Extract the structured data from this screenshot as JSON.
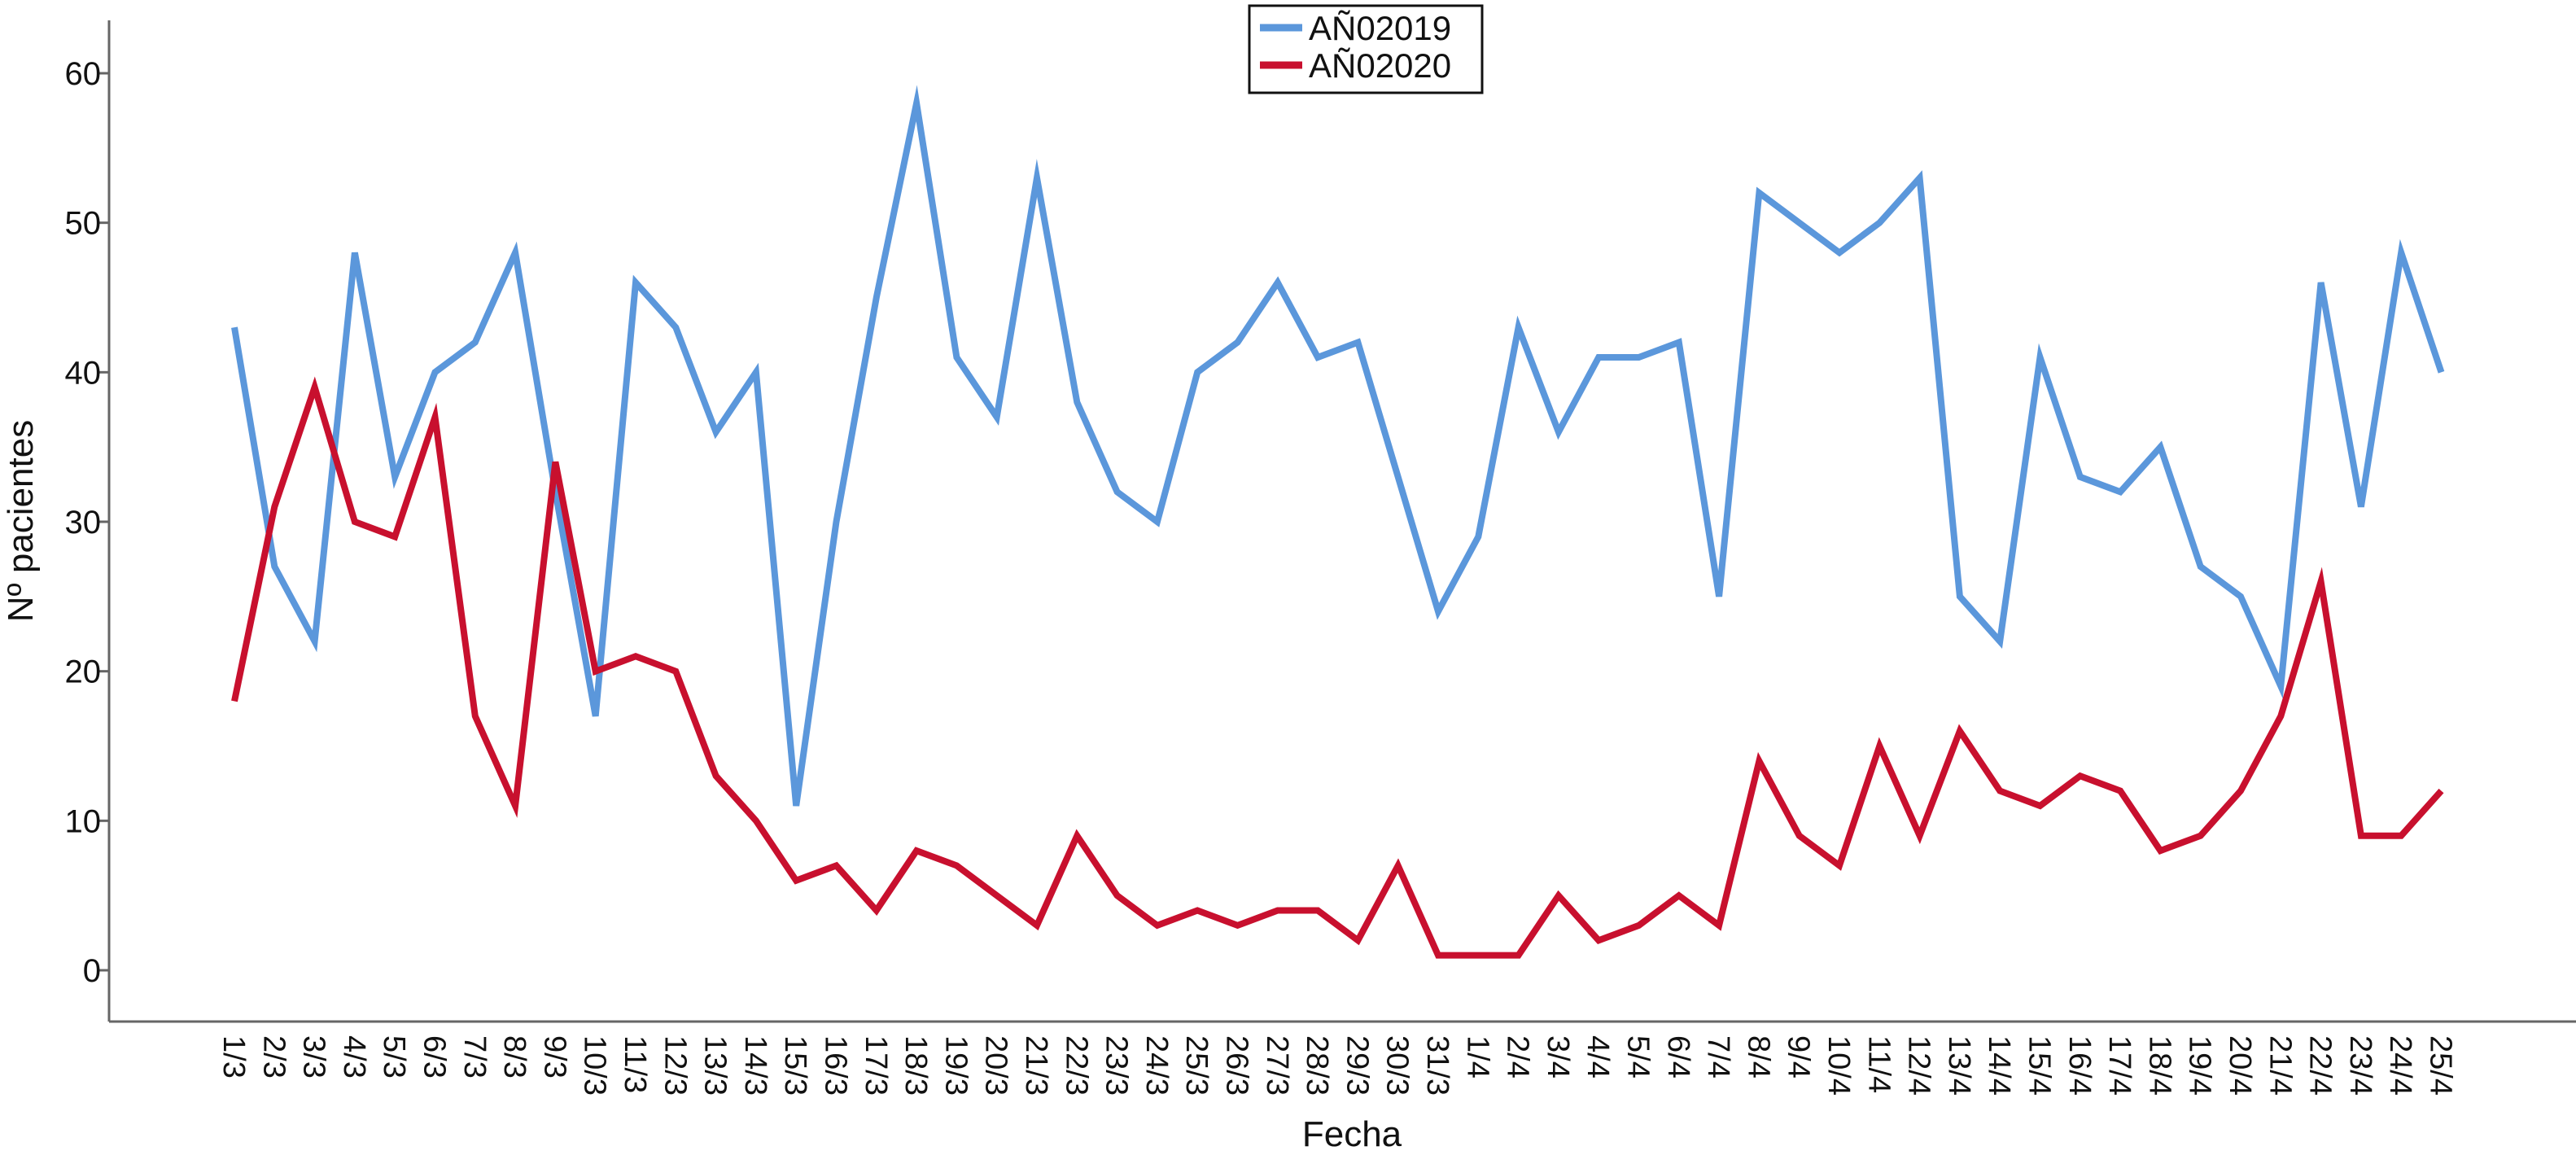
{
  "chart_data": {
    "type": "line",
    "xlabel": "Fecha",
    "ylabel": "Nº pacientes",
    "ylim": [
      0,
      60
    ],
    "yticks": [
      0,
      10,
      20,
      30,
      40,
      50,
      60
    ],
    "grid": false,
    "legend_position": "top-center",
    "categories": [
      "1/3",
      "2/3",
      "3/3",
      "4/3",
      "5/3",
      "6/3",
      "7/3",
      "8/3",
      "9/3",
      "10/3",
      "11/3",
      "12/3",
      "13/3",
      "14/3",
      "15/3",
      "16/3",
      "17/3",
      "18/3",
      "19/3",
      "20/3",
      "21/3",
      "22/3",
      "23/3",
      "24/3",
      "25/3",
      "26/3",
      "27/3",
      "28/3",
      "29/3",
      "30/3",
      "31/3",
      "1/4",
      "2/4",
      "3/4",
      "4/4",
      "5/4",
      "6/4",
      "7/4",
      "8/4",
      "9/4",
      "10/4",
      "11/4",
      "12/4",
      "13/4",
      "14/4",
      "15/4",
      "16/4",
      "17/4",
      "18/4",
      "19/4",
      "20/4",
      "21/4",
      "22/4",
      "23/4",
      "24/4",
      "25/4"
    ],
    "series": [
      {
        "name": "AÑ02019",
        "color": "#5B97DB",
        "values": [
          43,
          27,
          22,
          48,
          33,
          40,
          42,
          48,
          32,
          17,
          46,
          43,
          36,
          40,
          11,
          30,
          45,
          58,
          41,
          37,
          53,
          38,
          32,
          30,
          40,
          42,
          46,
          41,
          42,
          33,
          24,
          29,
          43,
          36,
          41,
          41,
          42,
          25,
          52,
          50,
          48,
          50,
          53,
          25,
          22,
          41,
          33,
          32,
          35,
          27,
          25,
          19,
          46,
          31,
          48,
          40
        ]
      },
      {
        "name": "AÑ02020",
        "color": "#C8102E",
        "values": [
          18,
          31,
          39,
          30,
          29,
          37,
          17,
          11,
          34,
          20,
          21,
          20,
          13,
          10,
          6,
          7,
          4,
          8,
          7,
          5,
          3,
          9,
          5,
          3,
          4,
          3,
          4,
          4,
          2,
          7,
          1,
          1,
          1,
          5,
          2,
          3,
          5,
          3,
          14,
          9,
          7,
          15,
          9,
          16,
          12,
          11,
          13,
          12,
          8,
          9,
          12,
          17,
          26,
          9,
          9,
          12
        ]
      }
    ]
  }
}
